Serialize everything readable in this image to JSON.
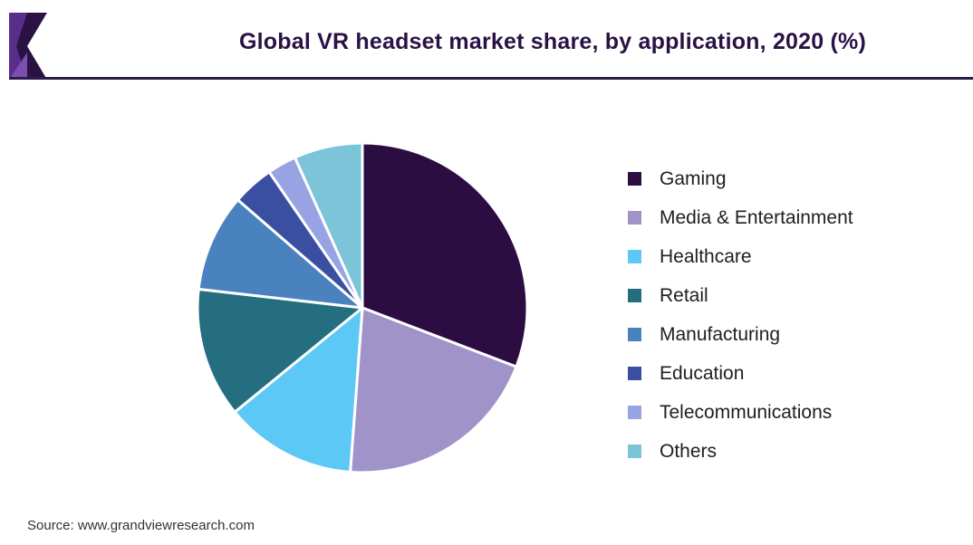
{
  "header": {
    "title": "Global VR headset market share, by application, 2020 (%)",
    "accent_color": "#2d1b4e",
    "logo_primary_color": "#5b2d8a",
    "logo_secondary_color": "#2a1245"
  },
  "chart_data": {
    "type": "pie",
    "title": "Global VR headset market share, by application, 2020 (%)",
    "unit": "%",
    "categories": [
      "Gaming",
      "Media & Entertainment",
      "Healthcare",
      "Retail",
      "Manufacturing",
      "Education",
      "Telecommunications",
      "Others"
    ],
    "values": [
      30.3,
      20.0,
      12.7,
      12.5,
      9.4,
      4.0,
      2.8,
      6.6
    ],
    "colors": [
      "#2b0d42",
      "#9f93c9",
      "#5bc8f5",
      "#246e7f",
      "#4a82bf",
      "#3a4fa2",
      "#97a3e2",
      "#7cc4d7"
    ],
    "start_angle_deg": 0,
    "direction": "clockwise",
    "slice_border_color": "#ffffff",
    "legend_position": "right"
  },
  "legend": {
    "items": [
      {
        "label": "Gaming"
      },
      {
        "label": "Media & Entertainment"
      },
      {
        "label": "Healthcare"
      },
      {
        "label": "Retail"
      },
      {
        "label": "Manufacturing"
      },
      {
        "label": "Education"
      },
      {
        "label": "Telecommunications"
      },
      {
        "label": "Others"
      }
    ]
  },
  "footer": {
    "source": "Source: www.grandviewresearch.com"
  }
}
